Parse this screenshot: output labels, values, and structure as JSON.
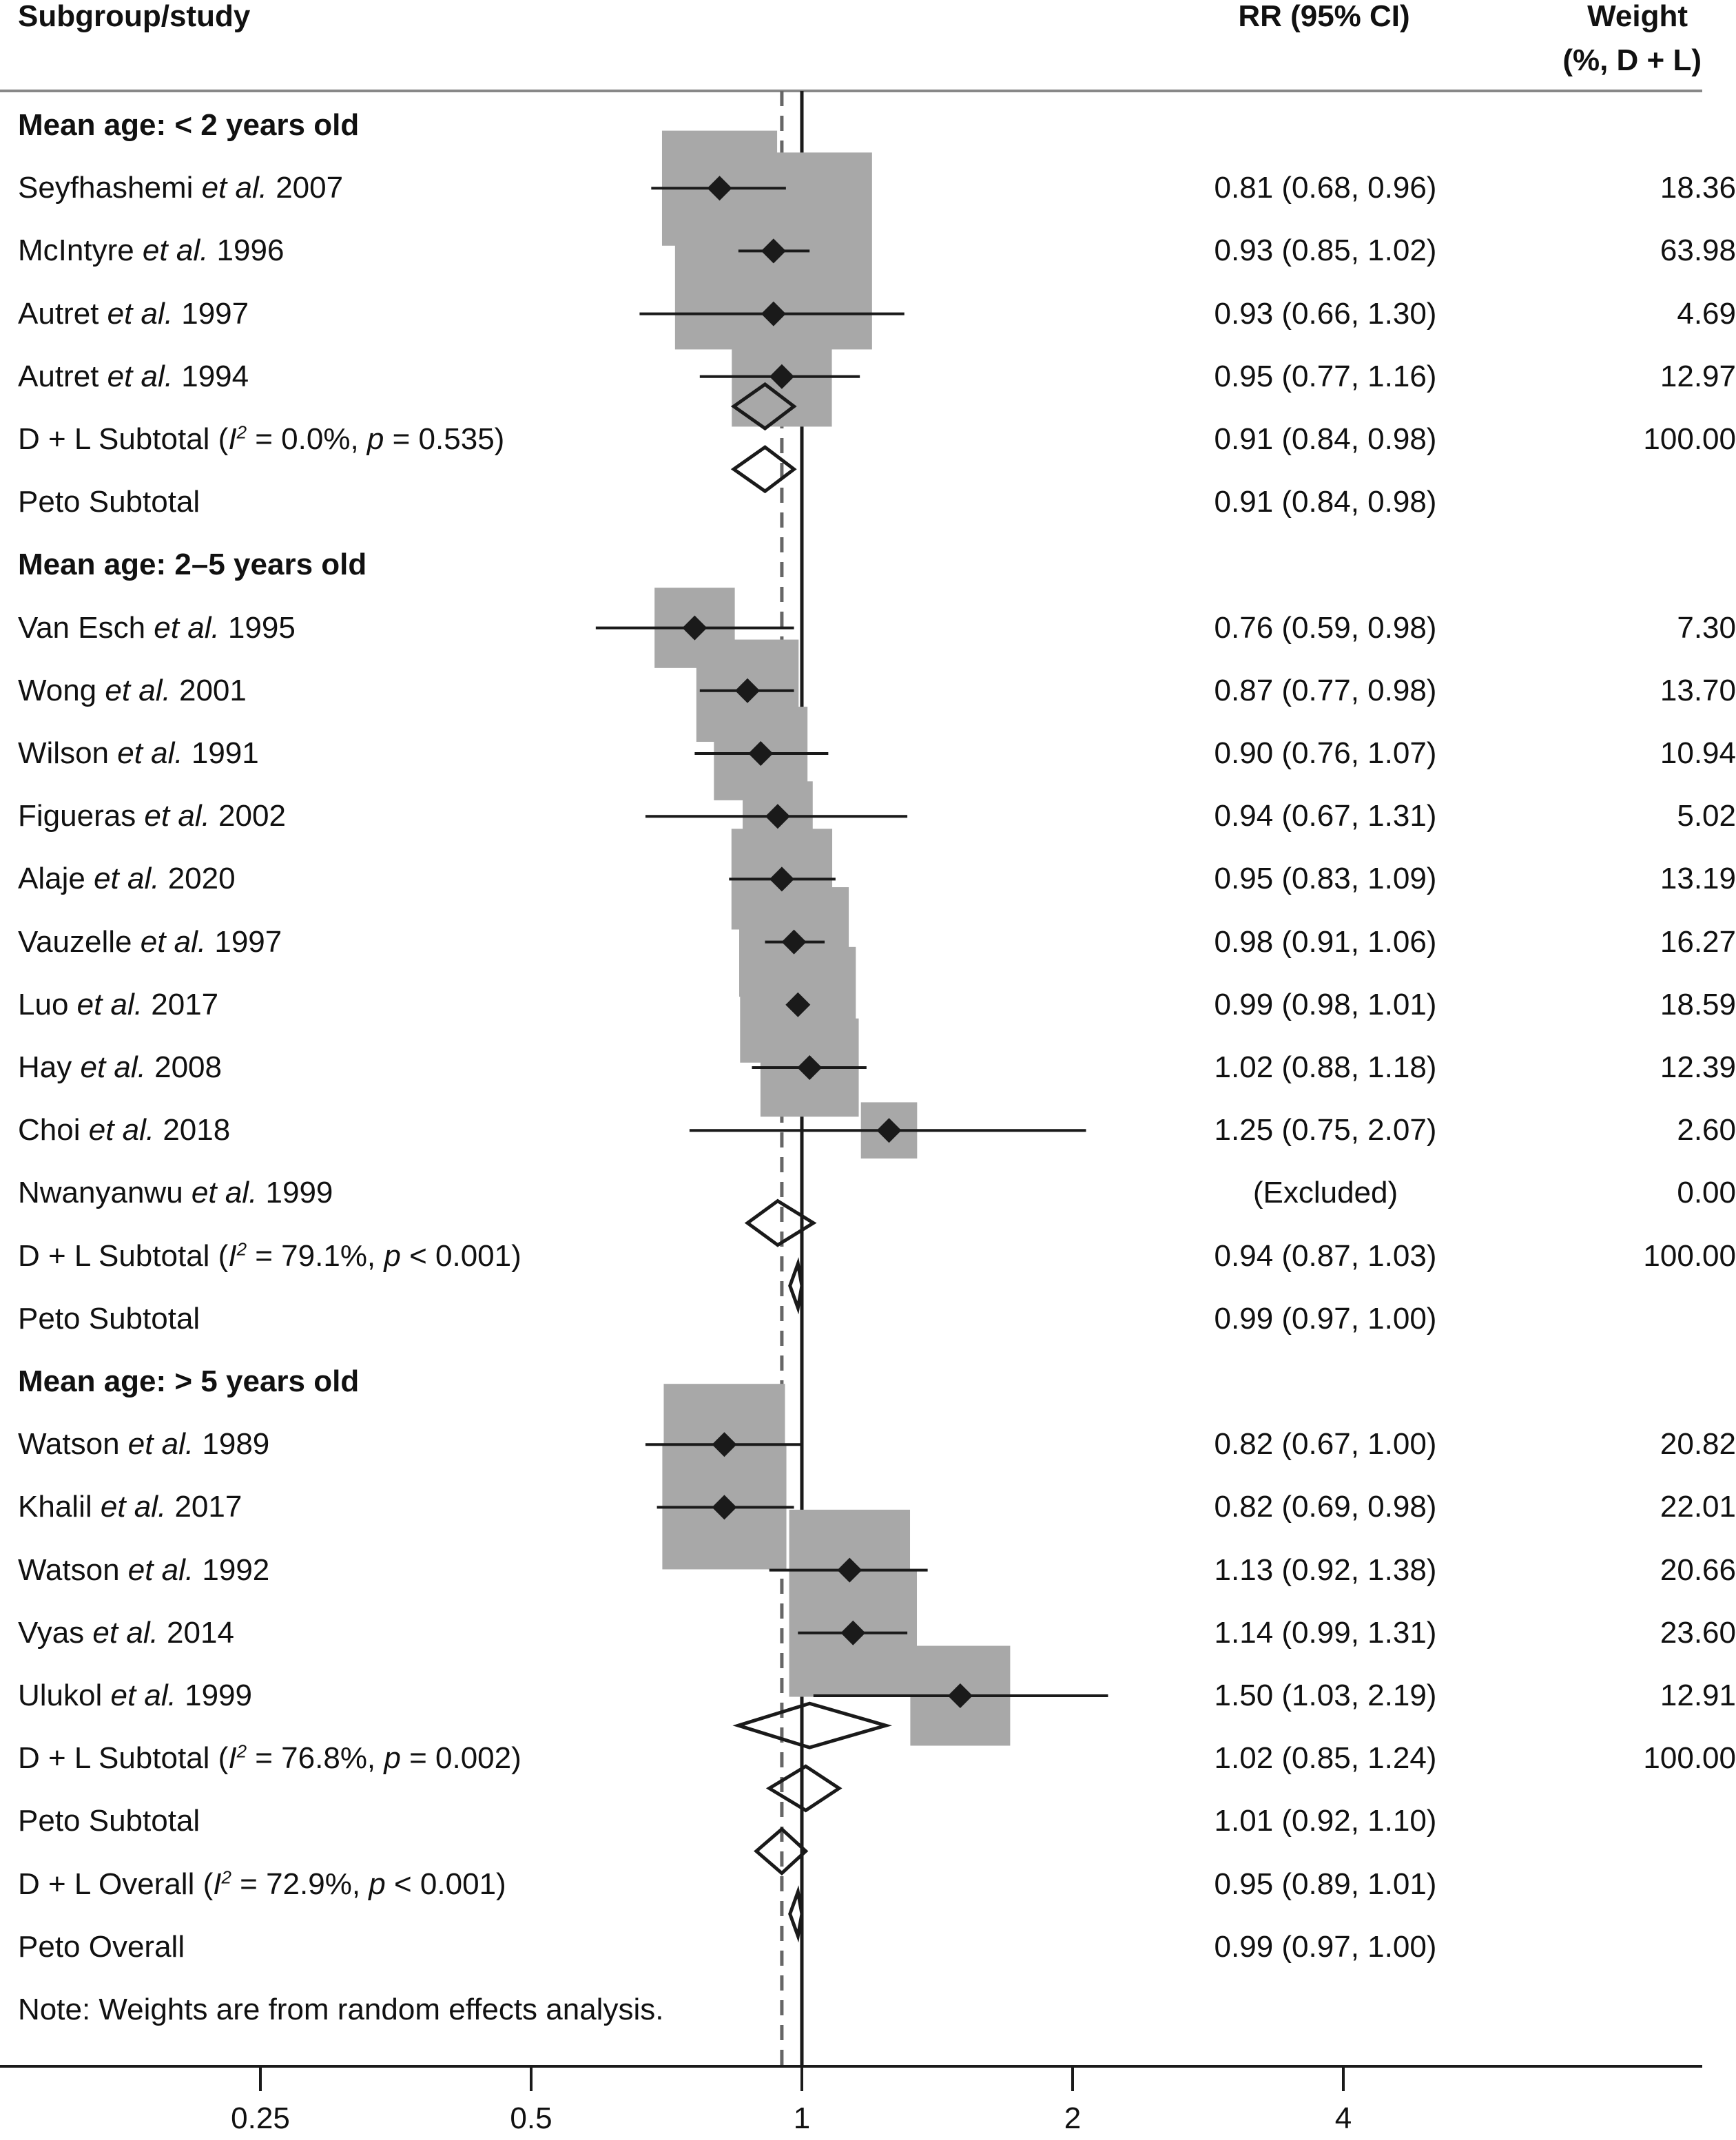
{
  "headers": {
    "study": "Subgroup/study",
    "ci": "RR (95% CI)",
    "weight_line1": "Weight",
    "weight_line2": "(%, D + L)"
  },
  "colors": {
    "box": "#a8a8a8",
    "ink": "#1a1a1a",
    "dashed_line": "#666666"
  },
  "chart_data": {
    "type": "forest",
    "xscale": "log",
    "null_value": 1,
    "overall_estimate_line": 0.95,
    "x_ticks": [
      0.25,
      0.5,
      1,
      2,
      4
    ],
    "x_tick_labels": [
      "0.25",
      "0.5",
      "1",
      "2",
      "4"
    ],
    "rows": [
      {
        "kind": "header",
        "label": "Mean age: < 2 years old"
      },
      {
        "kind": "study",
        "name": "Seyfhashemi",
        "year": "2007",
        "est": 0.81,
        "lo": 0.68,
        "hi": 0.96,
        "ci_text": "0.81 (0.68, 0.96)",
        "weight": "18.36"
      },
      {
        "kind": "study",
        "name": "McIntyre",
        "year": "1996",
        "est": 0.93,
        "lo": 0.85,
        "hi": 1.02,
        "ci_text": "0.93 (0.85, 1.02)",
        "weight": "63.98"
      },
      {
        "kind": "study",
        "name": "Autret",
        "year": "1997",
        "est": 0.93,
        "lo": 0.66,
        "hi": 1.3,
        "ci_text": "0.93 (0.66, 1.30)",
        "weight": "4.69"
      },
      {
        "kind": "study",
        "name": "Autret",
        "year": "1994",
        "est": 0.95,
        "lo": 0.77,
        "hi": 1.16,
        "ci_text": "0.95 (0.77, 1.16)",
        "weight": "12.97"
      },
      {
        "kind": "subtotal",
        "prefix": "D + L Subtotal (",
        "i2": "= 0.0%, ",
        "p": "= 0.535)",
        "est": 0.91,
        "lo": 0.84,
        "hi": 0.98,
        "ci_text": "0.91 (0.84, 0.98)",
        "weight": "100.00"
      },
      {
        "kind": "peto",
        "label": "Peto Subtotal",
        "est": 0.91,
        "lo": 0.84,
        "hi": 0.98,
        "ci_text": "0.91 (0.84, 0.98)",
        "weight": ""
      },
      {
        "kind": "header",
        "label": "Mean age: 2–5 years old"
      },
      {
        "kind": "study",
        "name": "Van Esch",
        "year": "1995",
        "est": 0.76,
        "lo": 0.59,
        "hi": 0.98,
        "ci_text": "0.76 (0.59, 0.98)",
        "weight": "7.30"
      },
      {
        "kind": "study",
        "name": "Wong",
        "year": "2001",
        "est": 0.87,
        "lo": 0.77,
        "hi": 0.98,
        "ci_text": "0.87 (0.77, 0.98)",
        "weight": "13.70"
      },
      {
        "kind": "study",
        "name": "Wilson",
        "year": "1991",
        "est": 0.9,
        "lo": 0.76,
        "hi": 1.07,
        "ci_text": "0.90 (0.76, 1.07)",
        "weight": "10.94"
      },
      {
        "kind": "study",
        "name": "Figueras",
        "year": "2002",
        "est": 0.94,
        "lo": 0.67,
        "hi": 1.31,
        "ci_text": "0.94 (0.67, 1.31)",
        "weight": "5.02"
      },
      {
        "kind": "study",
        "name": "Alaje",
        "year": "2020",
        "est": 0.95,
        "lo": 0.83,
        "hi": 1.09,
        "ci_text": "0.95 (0.83, 1.09)",
        "weight": "13.19"
      },
      {
        "kind": "study",
        "name": "Vauzelle",
        "year": "1997",
        "est": 0.98,
        "lo": 0.91,
        "hi": 1.06,
        "ci_text": "0.98 (0.91, 1.06)",
        "weight": "16.27"
      },
      {
        "kind": "study",
        "name": "Luo",
        "year": "2017",
        "est": 0.99,
        "lo": 0.98,
        "hi": 1.01,
        "ci_text": "0.99 (0.98, 1.01)",
        "weight": "18.59"
      },
      {
        "kind": "study",
        "name": "Hay",
        "year": "2008",
        "est": 1.02,
        "lo": 0.88,
        "hi": 1.18,
        "ci_text": "1.02 (0.88, 1.18)",
        "weight": "12.39"
      },
      {
        "kind": "study",
        "name": "Choi",
        "year": "2018",
        "est": 1.25,
        "lo": 0.75,
        "hi": 2.07,
        "ci_text": "1.25 (0.75, 2.07)",
        "weight": "2.60"
      },
      {
        "kind": "study",
        "name": "Nwanyanwu",
        "year": "1999",
        "est": null,
        "lo": null,
        "hi": null,
        "ci_text": "(Excluded)",
        "weight": "0.00"
      },
      {
        "kind": "subtotal",
        "prefix": "D + L Subtotal (",
        "i2": "= 79.1%, ",
        "p": "< 0.001)",
        "est": 0.94,
        "lo": 0.87,
        "hi": 1.03,
        "ci_text": "0.94 (0.87, 1.03)",
        "weight": "100.00"
      },
      {
        "kind": "peto",
        "label": "Peto Subtotal",
        "est": 0.99,
        "lo": 0.97,
        "hi": 1.0,
        "ci_text": "0.99 (0.97, 1.00)",
        "weight": ""
      },
      {
        "kind": "header",
        "label": "Mean age: > 5 years old"
      },
      {
        "kind": "study",
        "name": "Watson",
        "year": "1989",
        "est": 0.82,
        "lo": 0.67,
        "hi": 1.0,
        "ci_text": "0.82 (0.67, 1.00)",
        "weight": "20.82"
      },
      {
        "kind": "study",
        "name": "Khalil",
        "year": "2017",
        "est": 0.82,
        "lo": 0.69,
        "hi": 0.98,
        "ci_text": "0.82 (0.69, 0.98)",
        "weight": "22.01"
      },
      {
        "kind": "study",
        "name": "Watson",
        "year": "1992",
        "est": 1.13,
        "lo": 0.92,
        "hi": 1.38,
        "ci_text": "1.13 (0.92, 1.38)",
        "weight": "20.66"
      },
      {
        "kind": "study",
        "name": "Vyas",
        "year": "2014",
        "est": 1.14,
        "lo": 0.99,
        "hi": 1.31,
        "ci_text": "1.14 (0.99, 1.31)",
        "weight": "23.60"
      },
      {
        "kind": "study",
        "name": "Ulukol",
        "year": "1999",
        "est": 1.5,
        "lo": 1.03,
        "hi": 2.19,
        "ci_text": "1.50 (1.03, 2.19)",
        "weight": "12.91"
      },
      {
        "kind": "subtotal",
        "prefix": "D + L Subtotal (",
        "i2": "= 76.8%, ",
        "p": "= 0.002)",
        "est": 1.02,
        "lo": 0.85,
        "hi": 1.24,
        "ci_text": "1.02 (0.85, 1.24)",
        "weight": "100.00"
      },
      {
        "kind": "peto",
        "label": "Peto Subtotal",
        "est": 1.01,
        "lo": 0.92,
        "hi": 1.1,
        "ci_text": "1.01 (0.92, 1.10)",
        "weight": ""
      },
      {
        "kind": "subtotal",
        "prefix": "D + L Overall (",
        "i2": "= 72.9%, ",
        "p": "< 0.001)",
        "est": 0.95,
        "lo": 0.89,
        "hi": 1.01,
        "ci_text": "0.95 (0.89, 1.01)",
        "weight": ""
      },
      {
        "kind": "peto",
        "label": "Peto Overall",
        "est": 0.99,
        "lo": 0.97,
        "hi": 1.0,
        "ci_text": "0.99 (0.97, 1.00)",
        "weight": ""
      },
      {
        "kind": "note",
        "label": "Note: Weights are from random effects analysis."
      }
    ]
  }
}
